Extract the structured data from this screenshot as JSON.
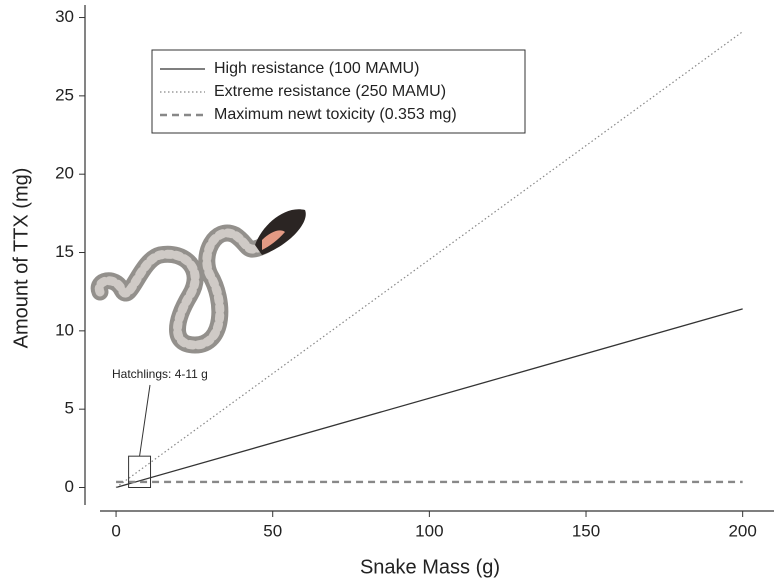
{
  "chart_data": {
    "type": "line",
    "x_label": "Snake Mass (g)",
    "y_label": "Amount of TTX (mg)",
    "x": [
      0,
      200
    ],
    "series": [
      {
        "name": "High resistance (100 MAMU)",
        "color": "#333333",
        "dash": "solid",
        "values": [
          0,
          11.4
        ]
      },
      {
        "name": "Extreme resistance (250 MAMU)",
        "color": "#888888",
        "dash": "dotted",
        "values": [
          0,
          29.1
        ]
      },
      {
        "name": "Maximum newt toxicity (0.353 mg)",
        "color": "#888888",
        "dash": "dashed",
        "values": [
          0.353,
          0.353
        ]
      }
    ],
    "xlim": [
      -8,
      210
    ],
    "ylim": [
      -1.5,
      30.8
    ],
    "xticks": [
      0,
      50,
      100,
      150,
      200
    ],
    "yticks": [
      0,
      5,
      10,
      15,
      20,
      25,
      30
    ],
    "grid": false,
    "legend": "upper left",
    "annotation": {
      "text": "Hatchlings: 4-11 g",
      "x": [
        4,
        11
      ],
      "y": [
        0,
        2
      ]
    }
  }
}
